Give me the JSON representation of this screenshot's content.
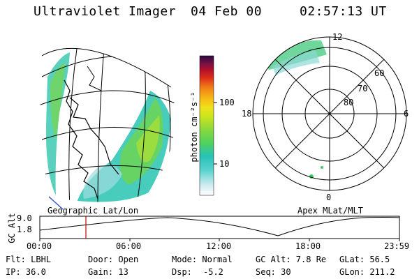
{
  "header": {
    "instrument": "Ultraviolet Imager",
    "date": "04 Feb 00",
    "time": "02:57:13 UT"
  },
  "colorbar": {
    "unit_label": "photon cm⁻²s⁻¹",
    "ticks": [
      "100",
      "10"
    ]
  },
  "geo_panel": {
    "caption": "Geographic Lat/Lon"
  },
  "polar_panel": {
    "caption": "Apex MLat/MLT",
    "mlt_labels": [
      "12",
      "18",
      "6",
      "0"
    ],
    "lat_labels": [
      "60",
      "70",
      "80"
    ]
  },
  "timeline": {
    "ylabel": "GC Alt",
    "ytick_top": "9.0",
    "ytick_bottom": "1.8",
    "ticks": [
      "00:00",
      "06:00",
      "12:00",
      "18:00",
      "23:59"
    ]
  },
  "status": {
    "filter": "Flt: LBHL",
    "ip": "IP: 36.0",
    "door": "Door: Open",
    "gain": "Gain: 13",
    "mode": "Mode: Normal",
    "dsp_label": "Dsp:",
    "dsp_value": "-5.2",
    "gc_alt": "GC Alt: 7.8 Re",
    "seq": "Seq: 30",
    "glat": "GLat:  56.5",
    "glon": "GLon: 211.2"
  },
  "colors": {
    "cursor": "#c00000",
    "aurora_cyan": "#22c7c0",
    "aurora_green": "#4fd36a",
    "aurora_yellowgreen": "#a8e030"
  }
}
